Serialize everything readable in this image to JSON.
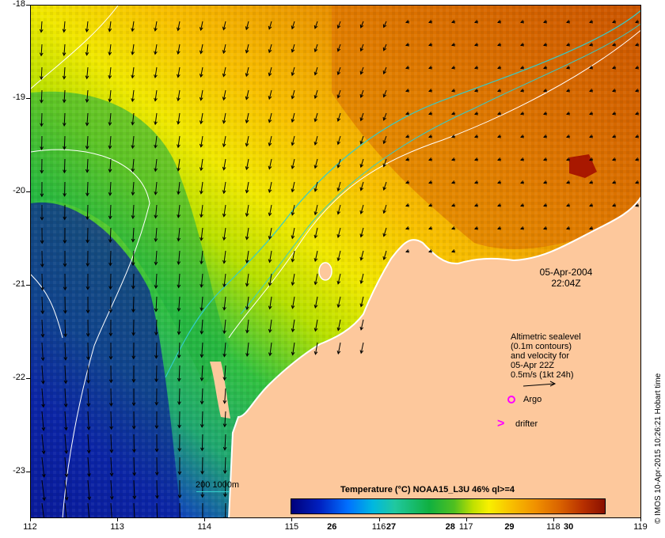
{
  "map": {
    "axis_x_labels": [
      "112",
      "113",
      "114",
      "115",
      "116",
      "117",
      "118",
      "119"
    ],
    "axis_y_labels": [
      "-18",
      "-19",
      "-20",
      "-21",
      "-22",
      "-23"
    ],
    "x_range": [
      112,
      119
    ],
    "y_range": [
      -18,
      -23.5
    ],
    "date": "05-Apr-2004",
    "time": "22:04Z",
    "altimetry_lines": [
      "Altimetric sealevel",
      "(0.1m contours)",
      "and velocity for",
      "05-Apr 22Z",
      "0.5m/s (1kt 24h)"
    ],
    "legend_argo": "Argo",
    "legend_drifter": "drifter",
    "colorbar_title": "Temperature (°C) NOAA15_L3U 46% ql>=4",
    "colorbar_ticks": [
      "26",
      "27",
      "28",
      "29",
      "30"
    ],
    "colorbar_range": [
      25.3,
      30.6
    ],
    "contour_label": "200  1000m",
    "credit": "© IMOS 10-Apr-2015 10:26:21 Hobart time",
    "colors": {
      "land": "#fdc89c",
      "cold": "#0a1a9a",
      "mid": "#20b040",
      "warm": "#f8e000",
      "hot": "#e08000",
      "hottest": "#a81800",
      "contour_shelf": "#33cccc",
      "marker": "#ff00ff"
    }
  }
}
